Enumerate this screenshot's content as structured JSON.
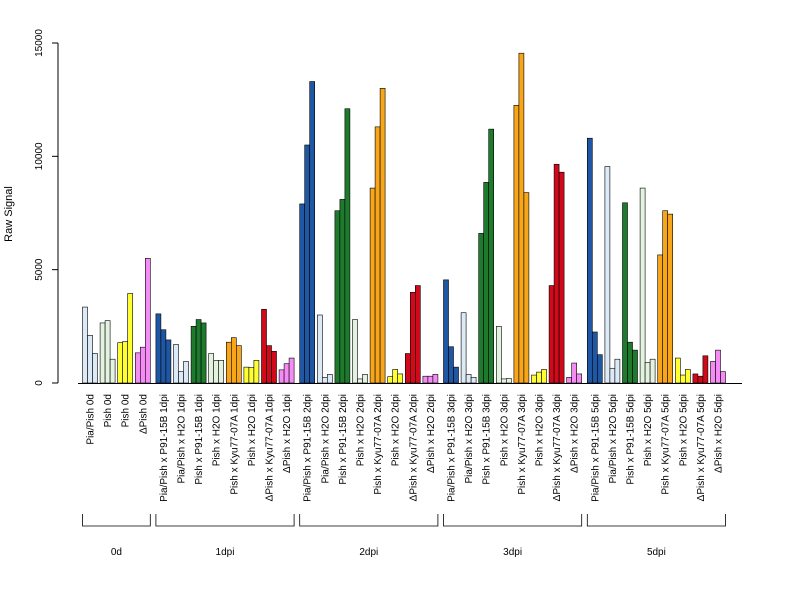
{
  "chart_data": {
    "type": "bar",
    "ylabel": "Raw Signal",
    "ylim": [
      0,
      15000
    ],
    "yticks": [
      0,
      5000,
      10000,
      15000
    ],
    "colors": {
      "light_blue": "#DCE9F7",
      "dark_blue": "#1F57A4",
      "dark_green": "#1E7B2E",
      "light_green": "#E3F3E0",
      "orange": "#F7A61A",
      "yellow": "#FFFF33",
      "red": "#D10A1B",
      "pink": "#F58CF5"
    },
    "groups": [
      {
        "label": "0d",
        "categories": [
          {
            "label": "Pia/Pish 0d",
            "color": "light_blue",
            "values": [
              3350,
              2100,
              1300
            ]
          },
          {
            "label": "Pish 0d",
            "color": "light_green",
            "values": [
              2650,
              2750,
              1050
            ]
          },
          {
            "label": "Pish 0d",
            "color": "yellow",
            "values": [
              1780,
              1830,
              3950
            ]
          },
          {
            "label": "ΔPish 0d",
            "color": "pink",
            "values": [
              1330,
              1580,
              5500
            ]
          }
        ]
      },
      {
        "label": "1dpi",
        "categories": [
          {
            "label": "Pia/Pish x P91-15B 1dpi",
            "color": "dark_blue",
            "values": [
              3050,
              2350,
              1900
            ]
          },
          {
            "label": "Pia/Pish x H2O 1dpi",
            "color": "light_blue",
            "values": [
              1700,
              500,
              950
            ]
          },
          {
            "label": "Pish x P91-15B 1dpi",
            "color": "dark_green",
            "values": [
              2500,
              2800,
              2650
            ]
          },
          {
            "label": "Pish x H2O 1dpi",
            "color": "light_green",
            "values": [
              1300,
              1000,
              1000
            ]
          },
          {
            "label": "Pish x Kyu77-07A 1dpi",
            "color": "orange",
            "values": [
              1800,
              2000,
              1650
            ]
          },
          {
            "label": "Pish x H2O 1dpi",
            "color": "yellow",
            "values": [
              700,
              680,
              1000
            ]
          },
          {
            "label": "ΔPish x Kyu77-07A 1dpi",
            "color": "red",
            "values": [
              3250,
              1650,
              1400
            ]
          },
          {
            "label": "ΔPish x H2O 1dpi",
            "color": "pink",
            "values": [
              580,
              850,
              1100
            ]
          }
        ]
      },
      {
        "label": "2dpi",
        "categories": [
          {
            "label": "Pia/Pish x P91-15B 2dpi",
            "color": "dark_blue",
            "values": [
              7900,
              10500,
              13300
            ]
          },
          {
            "label": "Pia/Pish x H2O 2dpi",
            "color": "light_blue",
            "values": [
              3000,
              250,
              380
            ]
          },
          {
            "label": "Pish x P91-15B 2dpi",
            "color": "dark_green",
            "values": [
              7600,
              8100,
              12100
            ]
          },
          {
            "label": "Pish x H2O 2dpi",
            "color": "light_green",
            "values": [
              2800,
              180,
              380
            ]
          },
          {
            "label": "Pish x Kyu77-07A 2dpi",
            "color": "orange",
            "values": [
              8600,
              11300,
              13000
            ]
          },
          {
            "label": "Pish x H2O 2dpi",
            "color": "yellow",
            "values": [
              280,
              600,
              400
            ]
          },
          {
            "label": "ΔPish x Kyu77-07A 2dpi",
            "color": "red",
            "values": [
              1300,
              4000,
              4300
            ]
          },
          {
            "label": "ΔPish x H2O 2dpi",
            "color": "pink",
            "values": [
              300,
              300,
              380
            ]
          }
        ]
      },
      {
        "label": "3dpi",
        "categories": [
          {
            "label": "Pia/Pish x P91-15B 3dpi",
            "color": "dark_blue",
            "values": [
              4550,
              1600,
              700
            ]
          },
          {
            "label": "Pia/Pish x H2O 3dpi",
            "color": "light_blue",
            "values": [
              3100,
              380,
              250
            ]
          },
          {
            "label": "Pish x P91-15B 3dpi",
            "color": "dark_green",
            "values": [
              6600,
              8850,
              11200
            ]
          },
          {
            "label": "Pish x H2O 3dpi",
            "color": "light_green",
            "values": [
              2500,
              180,
              200
            ]
          },
          {
            "label": "Pish x Kyu77-07A 3dpi",
            "color": "orange",
            "values": [
              12250,
              14550,
              8400
            ]
          },
          {
            "label": "Pish x H2O 3dpi",
            "color": "yellow",
            "values": [
              350,
              480,
              600
            ]
          },
          {
            "label": "ΔPish x Kyu77-07A 3dpi",
            "color": "red",
            "values": [
              4300,
              9650,
              9300
            ]
          },
          {
            "label": "ΔPish x H2O 3dpi",
            "color": "pink",
            "values": [
              250,
              880,
              400
            ]
          }
        ]
      },
      {
        "label": "5dpi",
        "categories": [
          {
            "label": "Pia/Pish x P91-15B 5dpi",
            "color": "dark_blue",
            "values": [
              10800,
              2250,
              1250
            ]
          },
          {
            "label": "Pia/Pish x H2O 5dpi",
            "color": "light_blue",
            "values": [
              9550,
              650,
              1050
            ]
          },
          {
            "label": "Pish x P91-15B 5dpi",
            "color": "dark_green",
            "values": [
              7950,
              1800,
              1450
            ]
          },
          {
            "label": "Pish x H2O 5dpi",
            "color": "light_green",
            "values": [
              8600,
              900,
              1050
            ]
          },
          {
            "label": "Pish x Kyu77-07A 5dpi",
            "color": "orange",
            "values": [
              5650,
              7600,
              7450
            ]
          },
          {
            "label": "Pish x H2O 5dpi",
            "color": "yellow",
            "values": [
              1100,
              350,
              600
            ]
          },
          {
            "label": "ΔPish x Kyu77-07A 5dpi",
            "color": "red",
            "values": [
              400,
              300,
              1200
            ]
          },
          {
            "label": "ΔPish x H2O 5dpi",
            "color": "pink",
            "values": [
              950,
              1450,
              500
            ]
          }
        ]
      }
    ]
  }
}
